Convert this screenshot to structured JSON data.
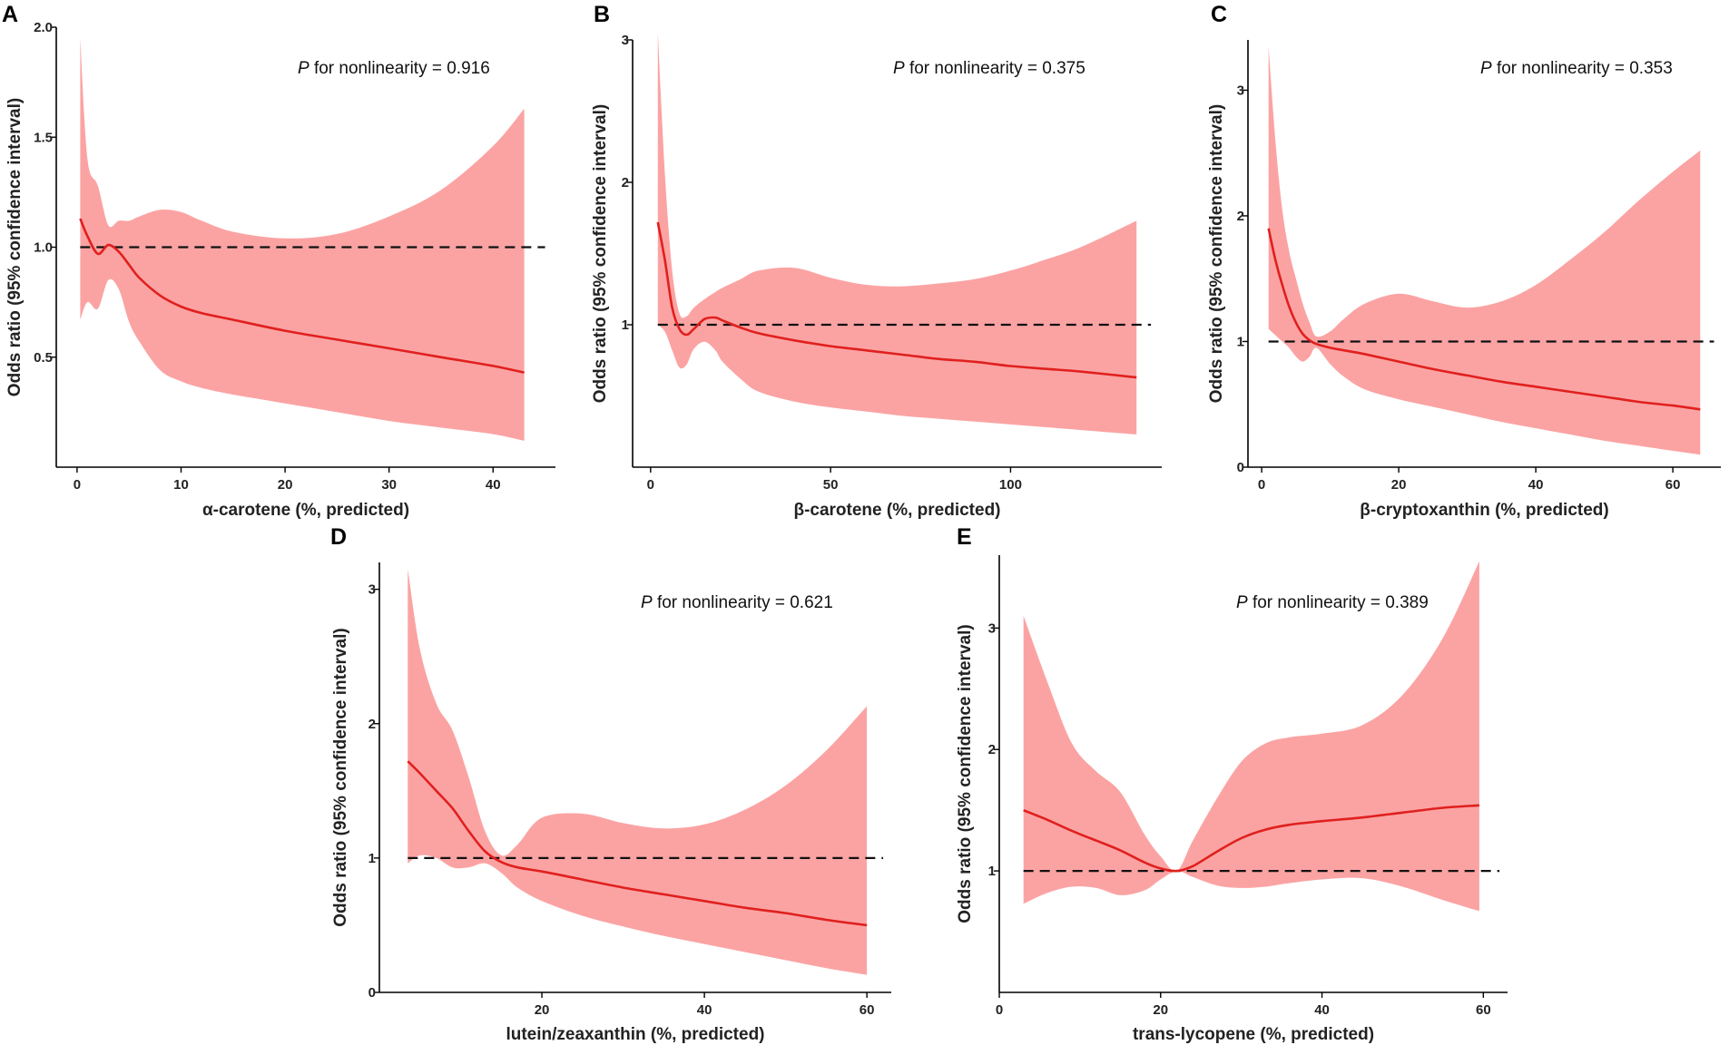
{
  "chart_data": [
    {
      "panel": "A",
      "type": "line",
      "annotation": {
        "p_label": "P",
        "text": " for nonlinearity = 0.916"
      },
      "xlabel": "α-carotene (%, predicted)",
      "ylabel": "Odds ratio (95% confidence interval)",
      "xlim": [
        -2,
        46
      ],
      "ylim": [
        0.0,
        2.0
      ],
      "xticks": [
        0,
        10,
        20,
        30,
        40
      ],
      "xtick_labels": [
        "0",
        "10",
        "20",
        "30",
        "40"
      ],
      "yticks": [
        0.5,
        1.0,
        1.5,
        2.0
      ],
      "ytick_labels": [
        "0.5",
        "1.0",
        "1.5",
        "2.0"
      ],
      "reference_line": {
        "y": 1.0,
        "x_range": [
          0.3,
          45
        ]
      },
      "series": [
        {
          "name": "Odds ratio",
          "x": [
            0.3,
            1.0,
            2.0,
            3.0,
            4.0,
            5.0,
            6.0,
            8.0,
            10,
            12,
            15,
            20,
            25,
            30,
            35,
            40,
            43
          ],
          "y": [
            1.13,
            1.05,
            0.97,
            1.01,
            0.98,
            0.92,
            0.86,
            0.78,
            0.73,
            0.7,
            0.67,
            0.62,
            0.58,
            0.54,
            0.5,
            0.46,
            0.43
          ],
          "lower": [
            0.67,
            0.75,
            0.72,
            0.85,
            0.81,
            0.66,
            0.57,
            0.44,
            0.39,
            0.36,
            0.33,
            0.29,
            0.25,
            0.21,
            0.18,
            0.15,
            0.12
          ],
          "upper": [
            1.95,
            1.4,
            1.28,
            1.1,
            1.12,
            1.12,
            1.14,
            1.17,
            1.16,
            1.12,
            1.07,
            1.04,
            1.06,
            1.14,
            1.26,
            1.46,
            1.63
          ]
        }
      ]
    },
    {
      "panel": "B",
      "type": "line",
      "annotation": {
        "p_label": "P",
        "text": " for nonlinearity = 0.375"
      },
      "xlabel": "β-carotene (%, predicted)",
      "ylabel": "Odds ratio (95% confidence interval)",
      "xlim": [
        -5,
        142
      ],
      "ylim": [
        0.0,
        3.0
      ],
      "xticks": [
        0,
        50,
        100
      ],
      "xtick_labels": [
        "0",
        "50",
        "100"
      ],
      "yticks": [
        1,
        2,
        3
      ],
      "ytick_labels": [
        "1",
        "2",
        "3"
      ],
      "reference_line": {
        "y": 1.0,
        "x_range": [
          2,
          139
        ]
      },
      "series": [
        {
          "name": "Odds ratio",
          "x": [
            2,
            4,
            6,
            8,
            10,
            12,
            15,
            18,
            20,
            25,
            30,
            40,
            50,
            60,
            70,
            80,
            90,
            100,
            110,
            120,
            135
          ],
          "y": [
            1.72,
            1.45,
            1.12,
            0.97,
            0.93,
            0.97,
            1.04,
            1.05,
            1.03,
            0.98,
            0.94,
            0.89,
            0.85,
            0.82,
            0.79,
            0.76,
            0.74,
            0.71,
            0.69,
            0.67,
            0.63
          ],
          "lower": [
            1.0,
            0.95,
            0.82,
            0.7,
            0.72,
            0.83,
            0.88,
            0.82,
            0.74,
            0.62,
            0.53,
            0.46,
            0.42,
            0.39,
            0.36,
            0.34,
            0.32,
            0.3,
            0.28,
            0.26,
            0.23
          ],
          "upper": [
            3.05,
            2.05,
            1.38,
            1.08,
            1.06,
            1.12,
            1.18,
            1.23,
            1.26,
            1.32,
            1.38,
            1.4,
            1.33,
            1.28,
            1.27,
            1.29,
            1.32,
            1.38,
            1.46,
            1.55,
            1.73
          ]
        }
      ]
    },
    {
      "panel": "C",
      "type": "line",
      "annotation": {
        "p_label": "P",
        "text": " for nonlinearity = 0.353"
      },
      "xlabel": "β-cryptoxanthin  (%, predicted)",
      "ylabel": "Odds ratio (95% confidence interval)",
      "xlim": [
        -2,
        67
      ],
      "ylim": [
        0.0,
        3.4
      ],
      "xticks": [
        0,
        20,
        40,
        60
      ],
      "xtick_labels": [
        "0",
        "20",
        "40",
        "60"
      ],
      "yticks": [
        0,
        1,
        2,
        3
      ],
      "ytick_labels": [
        "0",
        "1",
        "2",
        "3"
      ],
      "reference_line": {
        "y": 1.0,
        "x_range": [
          1,
          66
        ]
      },
      "series": [
        {
          "name": "Odds ratio",
          "x": [
            1.0,
            2.0,
            3.0,
            4.0,
            5.0,
            6.0,
            7.0,
            8.0,
            10,
            12,
            15,
            20,
            25,
            30,
            35,
            40,
            45,
            50,
            55,
            60,
            64
          ],
          "y": [
            1.9,
            1.65,
            1.45,
            1.28,
            1.15,
            1.06,
            1.01,
            0.98,
            0.95,
            0.93,
            0.9,
            0.84,
            0.78,
            0.73,
            0.68,
            0.64,
            0.6,
            0.56,
            0.52,
            0.49,
            0.46
          ],
          "lower": [
            1.1,
            1.05,
            1.0,
            0.95,
            0.88,
            0.84,
            0.88,
            0.95,
            0.82,
            0.72,
            0.62,
            0.54,
            0.48,
            0.42,
            0.36,
            0.31,
            0.26,
            0.21,
            0.17,
            0.13,
            0.1
          ],
          "upper": [
            3.35,
            2.6,
            2.05,
            1.72,
            1.5,
            1.3,
            1.15,
            1.04,
            1.08,
            1.18,
            1.3,
            1.38,
            1.32,
            1.27,
            1.32,
            1.45,
            1.65,
            1.87,
            2.12,
            2.35,
            2.52
          ]
        }
      ]
    },
    {
      "panel": "D",
      "type": "line",
      "annotation": {
        "p_label": "P",
        "text": " for nonlinearity = 0.621"
      },
      "xlabel": "lutein/zeaxanthin (%, predicted)",
      "ylabel": "Odds ratio (95% confidence interval)",
      "xlim": [
        0,
        63
      ],
      "ylim": [
        0.0,
        3.2
      ],
      "xticks": [
        20,
        40,
        60
      ],
      "xtick_labels": [
        "20",
        "40",
        "60"
      ],
      "yticks": [
        0,
        1,
        2,
        3
      ],
      "ytick_labels": [
        "0",
        "1",
        "2",
        "3"
      ],
      "reference_line": {
        "y": 1.0,
        "x_range": [
          3.5,
          62
        ]
      },
      "series": [
        {
          "name": "Odds ratio",
          "x": [
            3.5,
            5,
            7,
            9,
            11,
            13,
            15,
            17,
            20,
            25,
            30,
            35,
            40,
            45,
            50,
            55,
            60
          ],
          "y": [
            1.72,
            1.63,
            1.5,
            1.37,
            1.2,
            1.05,
            0.97,
            0.93,
            0.9,
            0.84,
            0.78,
            0.73,
            0.68,
            0.63,
            0.59,
            0.54,
            0.5
          ],
          "lower": [
            0.96,
            1.02,
            1.0,
            0.93,
            0.93,
            0.96,
            0.89,
            0.78,
            0.68,
            0.57,
            0.49,
            0.42,
            0.36,
            0.3,
            0.24,
            0.18,
            0.13
          ],
          "upper": [
            3.15,
            2.55,
            2.15,
            1.95,
            1.6,
            1.2,
            1.02,
            1.1,
            1.3,
            1.33,
            1.26,
            1.22,
            1.25,
            1.36,
            1.54,
            1.8,
            2.13
          ]
        }
      ]
    },
    {
      "panel": "E",
      "type": "line",
      "annotation": {
        "p_label": "P",
        "text": " for nonlinearity = 0.389"
      },
      "xlabel": "trans-lycopene (%, predicted)",
      "ylabel": "Odds ratio (95% confidence interval)",
      "xlim": [
        0,
        63
      ],
      "ylim": [
        0.0,
        3.6
      ],
      "xticks": [
        0,
        20,
        40,
        60
      ],
      "xtick_labels": [
        "0",
        "20",
        "40",
        "60"
      ],
      "yticks": [
        1,
        2,
        3
      ],
      "ytick_labels": [
        "1",
        "2",
        "3"
      ],
      "reference_line": {
        "y": 1.0,
        "x_range": [
          3,
          62
        ]
      },
      "series": [
        {
          "name": "Odds ratio",
          "x": [
            3,
            6,
            9,
            12,
            15,
            18,
            20,
            22,
            24,
            27,
            30,
            33,
            36,
            40,
            45,
            50,
            55,
            59.5
          ],
          "y": [
            1.5,
            1.42,
            1.33,
            1.25,
            1.17,
            1.07,
            1.02,
            1.0,
            1.04,
            1.16,
            1.27,
            1.34,
            1.38,
            1.41,
            1.44,
            1.48,
            1.52,
            1.54
          ],
          "lower": [
            0.73,
            0.82,
            0.87,
            0.86,
            0.8,
            0.84,
            0.93,
            1.0,
            0.95,
            0.88,
            0.86,
            0.87,
            0.9,
            0.93,
            0.94,
            0.87,
            0.76,
            0.67
          ],
          "upper": [
            3.1,
            2.55,
            2.05,
            1.82,
            1.65,
            1.3,
            1.12,
            1.0,
            1.25,
            1.6,
            1.9,
            2.05,
            2.1,
            2.13,
            2.2,
            2.45,
            2.92,
            3.55
          ]
        }
      ]
    }
  ]
}
